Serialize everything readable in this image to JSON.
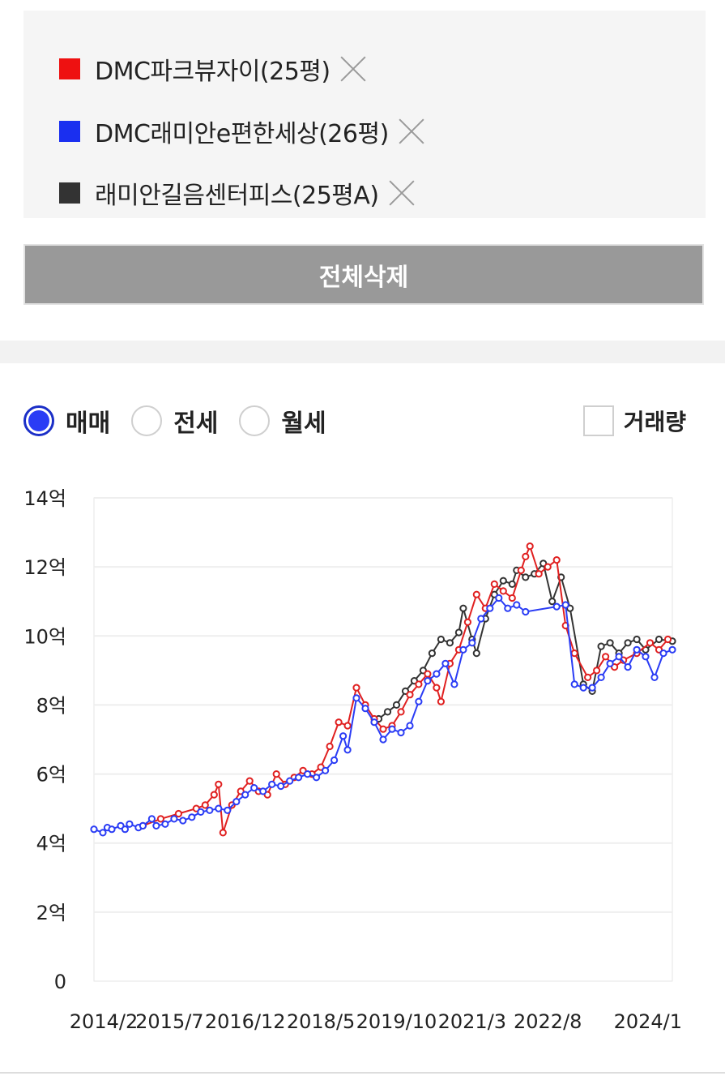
{
  "compare_list": {
    "items": [
      {
        "label": "DMC파크뷰자이(25평)",
        "color": "#ee1111"
      },
      {
        "label": "DMC래미안e편한세상(26평)",
        "color": "#1a2ff0"
      },
      {
        "label": "래미안길음센터피스(25평A)",
        "color": "#333333"
      }
    ],
    "delete_all_label": "전체삭제"
  },
  "trade_options": {
    "options": [
      "매매",
      "전세",
      "월세"
    ],
    "selected": "매매",
    "volume_label": "거래량",
    "volume_checked": false
  },
  "chart_data": {
    "type": "line",
    "title": "",
    "xlabel": "",
    "ylabel": "",
    "x_tick_labels": [
      "2014/2",
      "2015/7",
      "2016/12",
      "2018/5",
      "2019/10",
      "2021/3",
      "2022/8",
      "2024/1"
    ],
    "y_tick_labels": [
      "0",
      "2억",
      "4억",
      "6억",
      "8억",
      "10억",
      "12억",
      "14억"
    ],
    "y_unit": "억",
    "ylim": [
      0,
      14
    ],
    "xlim": [
      "2014-02",
      "2024-12"
    ],
    "grid": true,
    "series": [
      {
        "name": "DMC파크뷰자이(25평)",
        "color": "#e02020",
        "points": [
          [
            "2015-01",
            4.5
          ],
          [
            "2015-05",
            4.7
          ],
          [
            "2015-09",
            4.85
          ],
          [
            "2016-01",
            5.0
          ],
          [
            "2016-03",
            5.1
          ],
          [
            "2016-05",
            5.4
          ],
          [
            "2016-06",
            5.7
          ],
          [
            "2016-07",
            4.3
          ],
          [
            "2016-09",
            5.1
          ],
          [
            "2016-11",
            5.5
          ],
          [
            "2017-01",
            5.8
          ],
          [
            "2017-03",
            5.5
          ],
          [
            "2017-05",
            5.4
          ],
          [
            "2017-07",
            6.0
          ],
          [
            "2017-09",
            5.7
          ],
          [
            "2017-11",
            5.9
          ],
          [
            "2018-01",
            6.1
          ],
          [
            "2018-03",
            6.0
          ],
          [
            "2018-05",
            6.2
          ],
          [
            "2018-07",
            6.8
          ],
          [
            "2018-09",
            7.5
          ],
          [
            "2018-11",
            7.4
          ],
          [
            "2019-01",
            8.5
          ],
          [
            "2019-03",
            8.0
          ],
          [
            "2019-05",
            7.6
          ],
          [
            "2019-07",
            7.3
          ],
          [
            "2019-09",
            7.4
          ],
          [
            "2019-11",
            7.8
          ],
          [
            "2020-01",
            8.3
          ],
          [
            "2020-03",
            8.6
          ],
          [
            "2020-05",
            8.9
          ],
          [
            "2020-07",
            8.5
          ],
          [
            "2020-08",
            8.1
          ],
          [
            "2020-10",
            9.2
          ],
          [
            "2020-12",
            9.6
          ],
          [
            "2021-02",
            10.4
          ],
          [
            "2021-04",
            11.2
          ],
          [
            "2021-06",
            10.8
          ],
          [
            "2021-08",
            11.5
          ],
          [
            "2021-10",
            11.3
          ],
          [
            "2021-12",
            11.1
          ],
          [
            "2022-02",
            11.9
          ],
          [
            "2022-03",
            12.3
          ],
          [
            "2022-04",
            12.6
          ],
          [
            "2022-06",
            11.8
          ],
          [
            "2022-08",
            12.0
          ],
          [
            "2022-10",
            12.2
          ],
          [
            "2022-12",
            10.3
          ],
          [
            "2023-02",
            9.5
          ],
          [
            "2023-05",
            8.8
          ],
          [
            "2023-07",
            9.0
          ],
          [
            "2023-09",
            9.4
          ],
          [
            "2023-11",
            9.1
          ],
          [
            "2024-01",
            9.3
          ],
          [
            "2024-04",
            9.5
          ],
          [
            "2024-07",
            9.8
          ],
          [
            "2024-09",
            9.6
          ],
          [
            "2024-11",
            9.9
          ]
        ]
      },
      {
        "name": "DMC래미안e편한세상(26평)",
        "color": "#2a3cf5",
        "points": [
          [
            "2014-02",
            4.4
          ],
          [
            "2014-04",
            4.3
          ],
          [
            "2014-05",
            4.45
          ],
          [
            "2014-06",
            4.4
          ],
          [
            "2014-08",
            4.5
          ],
          [
            "2014-09",
            4.4
          ],
          [
            "2014-10",
            4.55
          ],
          [
            "2014-12",
            4.45
          ],
          [
            "2015-01",
            4.5
          ],
          [
            "2015-03",
            4.7
          ],
          [
            "2015-04",
            4.5
          ],
          [
            "2015-06",
            4.55
          ],
          [
            "2015-08",
            4.7
          ],
          [
            "2015-10",
            4.65
          ],
          [
            "2015-12",
            4.75
          ],
          [
            "2016-02",
            4.9
          ],
          [
            "2016-04",
            4.95
          ],
          [
            "2016-06",
            5.0
          ],
          [
            "2016-08",
            4.95
          ],
          [
            "2016-10",
            5.2
          ],
          [
            "2016-12",
            5.4
          ],
          [
            "2017-02",
            5.6
          ],
          [
            "2017-04",
            5.5
          ],
          [
            "2017-06",
            5.7
          ],
          [
            "2017-08",
            5.65
          ],
          [
            "2017-10",
            5.8
          ],
          [
            "2017-12",
            5.9
          ],
          [
            "2018-02",
            6.0
          ],
          [
            "2018-04",
            5.9
          ],
          [
            "2018-06",
            6.1
          ],
          [
            "2018-08",
            6.4
          ],
          [
            "2018-10",
            7.1
          ],
          [
            "2018-11",
            6.7
          ],
          [
            "2019-01",
            8.2
          ],
          [
            "2019-03",
            7.9
          ],
          [
            "2019-05",
            7.5
          ],
          [
            "2019-07",
            7.0
          ],
          [
            "2019-09",
            7.3
          ],
          [
            "2019-11",
            7.2
          ],
          [
            "2020-01",
            7.4
          ],
          [
            "2020-03",
            8.1
          ],
          [
            "2020-05",
            8.7
          ],
          [
            "2020-07",
            8.9
          ],
          [
            "2020-09",
            9.2
          ],
          [
            "2020-11",
            8.6
          ],
          [
            "2021-01",
            9.6
          ],
          [
            "2021-03",
            9.8
          ],
          [
            "2021-05",
            10.5
          ],
          [
            "2021-07",
            10.8
          ],
          [
            "2021-09",
            11.1
          ],
          [
            "2021-11",
            10.8
          ],
          [
            "2022-01",
            10.9
          ],
          [
            "2022-03",
            10.7
          ],
          [
            "2022-10",
            10.85
          ],
          [
            "2022-12",
            10.9
          ],
          [
            "2023-02",
            8.6
          ],
          [
            "2023-04",
            8.5
          ],
          [
            "2023-06",
            8.5
          ],
          [
            "2023-08",
            8.8
          ],
          [
            "2023-10",
            9.2
          ],
          [
            "2023-12",
            9.4
          ],
          [
            "2024-02",
            9.1
          ],
          [
            "2024-04",
            9.6
          ],
          [
            "2024-06",
            9.4
          ],
          [
            "2024-08",
            8.8
          ],
          [
            "2024-10",
            9.5
          ],
          [
            "2024-12",
            9.6
          ]
        ]
      },
      {
        "name": "래미안길음센터피스(25평A)",
        "color": "#333333",
        "points": [
          [
            "2019-06",
            7.6
          ],
          [
            "2019-08",
            7.8
          ],
          [
            "2019-10",
            8.0
          ],
          [
            "2019-12",
            8.4
          ],
          [
            "2020-02",
            8.7
          ],
          [
            "2020-04",
            9.0
          ],
          [
            "2020-06",
            9.5
          ],
          [
            "2020-08",
            9.9
          ],
          [
            "2020-10",
            9.8
          ],
          [
            "2020-12",
            10.1
          ],
          [
            "2021-01",
            10.8
          ],
          [
            "2021-03",
            9.9
          ],
          [
            "2021-04",
            9.5
          ],
          [
            "2021-06",
            10.5
          ],
          [
            "2021-08",
            11.2
          ],
          [
            "2021-10",
            11.6
          ],
          [
            "2021-12",
            11.5
          ],
          [
            "2022-01",
            11.9
          ],
          [
            "2022-03",
            11.7
          ],
          [
            "2022-05",
            11.8
          ],
          [
            "2022-07",
            12.1
          ],
          [
            "2022-09",
            11.0
          ],
          [
            "2022-11",
            11.7
          ],
          [
            "2023-01",
            10.8
          ],
          [
            "2023-04",
            8.6
          ],
          [
            "2023-06",
            8.4
          ],
          [
            "2023-08",
            9.7
          ],
          [
            "2023-10",
            9.8
          ],
          [
            "2023-12",
            9.5
          ],
          [
            "2024-02",
            9.8
          ],
          [
            "2024-04",
            9.9
          ],
          [
            "2024-06",
            9.6
          ],
          [
            "2024-09",
            9.9
          ],
          [
            "2024-12",
            9.85
          ]
        ]
      }
    ]
  }
}
